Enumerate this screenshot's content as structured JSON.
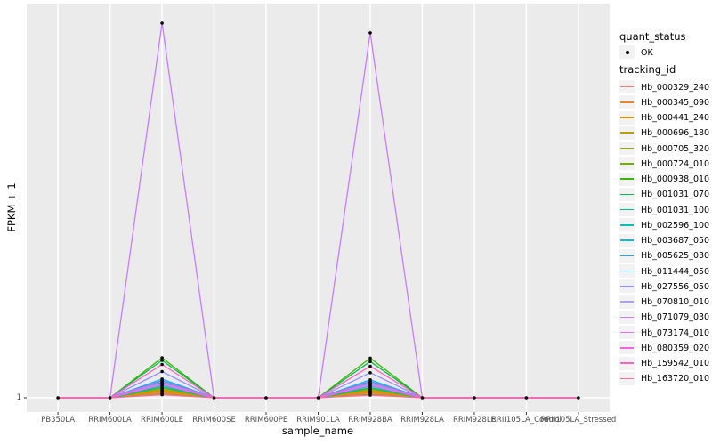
{
  "figure": {
    "background": "#FFFFFF",
    "panel_background": "#EBEBEB",
    "grid_color": "#FFFFFF",
    "tick_mark_color": "#333333",
    "tick_label_color": "#4D4D4D",
    "point_color": "#000000",
    "legend_key_background": "#F2F2F2"
  },
  "y_axis": {
    "title": "FPKM + 1",
    "tick_labels": [
      "1"
    ]
  },
  "x_axis": {
    "title": "sample_name",
    "categories": [
      "PB350LA",
      "RRIM600LA",
      "RRIM600LE",
      "RRIM600SE",
      "RRIM600PE",
      "RRIM901LA",
      "RRIM928BA",
      "RRIM928LA",
      "RRIM928LE",
      "RRII105LA_Control",
      "RRII105LA_Stressed"
    ]
  },
  "legend": {
    "quant_status": {
      "title": "quant_status",
      "items": [
        {
          "label": "OK",
          "symbol": "point"
        }
      ]
    },
    "tracking_id": {
      "title": "tracking_id"
    }
  },
  "chart_data": {
    "type": "line",
    "title": "",
    "xlabel": "sample_name",
    "ylabel": "FPKM + 1",
    "x_categories": [
      "PB350LA",
      "RRIM600LA",
      "RRIM600LE",
      "RRIM600SE",
      "RRIM600PE",
      "RRIM901LA",
      "RRIM928BA",
      "RRIM928LA",
      "RRIM928LE",
      "RRII105LA_Control",
      "RRII105LA_Stressed"
    ],
    "y_axis_labeled_ticks": [
      1
    ],
    "baseline_value": 1,
    "value_encoding": "rel_heights = fraction of panel height above the FPKM+1=1 baseline (only '1' is labeled on the y-axis); 1.0 = tallest spike",
    "quant_status_points": {
      "label": "OK",
      "marker": "small black point",
      "at": "every sample for every tracking_id"
    },
    "legend_position": "right",
    "grid": "white major gridlines on gray panel",
    "series": [
      {
        "name": "Hb_000329_240",
        "color": "#F8766D",
        "rel_heights": [
          0,
          0,
          0.013,
          0,
          0,
          0,
          0.012,
          0,
          0,
          0,
          0
        ]
      },
      {
        "name": "Hb_000345_090",
        "color": "#E9842C",
        "rel_heights": [
          0,
          0,
          0.016,
          0,
          0,
          0,
          0.015,
          0,
          0,
          0,
          0
        ]
      },
      {
        "name": "Hb_000441_240",
        "color": "#D69100",
        "rel_heights": [
          0,
          0,
          0.019,
          0,
          0,
          0,
          0.018,
          0,
          0,
          0,
          0
        ]
      },
      {
        "name": "Hb_000696_180",
        "color": "#BC9D00",
        "rel_heights": [
          0,
          0,
          0.022,
          0,
          0,
          0,
          0.021,
          0,
          0,
          0,
          0
        ]
      },
      {
        "name": "Hb_000705_320",
        "color": "#9CA700",
        "rel_heights": [
          0,
          0,
          0.01,
          0,
          0,
          0,
          0.009,
          0,
          0,
          0,
          0
        ]
      },
      {
        "name": "Hb_000724_010",
        "color": "#6FB000",
        "rel_heights": [
          0,
          0,
          0.026,
          0,
          0,
          0,
          0.024,
          0,
          0,
          0,
          0
        ]
      },
      {
        "name": "Hb_000938_010",
        "color": "#39B600",
        "rel_heights": [
          0,
          0,
          0.107,
          0,
          0,
          0,
          0.106,
          0,
          0,
          0,
          0
        ]
      },
      {
        "name": "Hb_001031_070",
        "color": "#00BB4E",
        "rel_heights": [
          0,
          0,
          0.1,
          0,
          0,
          0,
          0.097,
          0,
          0,
          0,
          0
        ]
      },
      {
        "name": "Hb_001031_100",
        "color": "#00C087",
        "rel_heights": [
          0,
          0,
          0.029,
          0,
          0,
          0,
          0.027,
          0,
          0,
          0,
          0
        ]
      },
      {
        "name": "Hb_002596_100",
        "color": "#00C0B4",
        "rel_heights": [
          0,
          0,
          0.033,
          0,
          0,
          0,
          0.031,
          0,
          0,
          0,
          0
        ]
      },
      {
        "name": "Hb_003687_050",
        "color": "#00BDD8",
        "rel_heights": [
          0,
          0,
          0.046,
          0,
          0,
          0,
          0.044,
          0,
          0,
          0,
          0
        ]
      },
      {
        "name": "Hb_005625_030",
        "color": "#00B4EF",
        "rel_heights": [
          0,
          0,
          0.041,
          0,
          0,
          0,
          0.039,
          0,
          0,
          0,
          0
        ]
      },
      {
        "name": "Hb_011444_050",
        "color": "#35A2FF",
        "rel_heights": [
          0,
          0,
          0.05,
          0,
          0,
          0,
          0.048,
          0,
          0,
          0,
          0
        ]
      },
      {
        "name": "Hb_027556_050",
        "color": "#9590FF",
        "rel_heights": [
          0,
          0,
          0.07,
          0,
          0,
          0,
          0.067,
          0,
          0,
          0,
          0
        ]
      },
      {
        "name": "Hb_070810_010",
        "color": "#B49BF2",
        "rel_heights": [
          0,
          0,
          0.038,
          0,
          0,
          0,
          0.036,
          0,
          0,
          0,
          0
        ]
      },
      {
        "name": "Hb_071079_030",
        "color": "#C77CFF",
        "rel_heights": [
          0,
          0,
          1.0,
          0,
          0,
          0,
          0.974,
          0,
          0,
          0,
          0
        ]
      },
      {
        "name": "Hb_073174_010",
        "color": "#E26EF7",
        "rel_heights": [
          0,
          0,
          0.035,
          0,
          0,
          0,
          0.033,
          0,
          0,
          0,
          0
        ]
      },
      {
        "name": "Hb_080359_020",
        "color": "#F763DF",
        "rel_heights": [
          0,
          0,
          0.043,
          0,
          0,
          0,
          0.041,
          0,
          0,
          0,
          0
        ]
      },
      {
        "name": "Hb_159542_010",
        "color": "#FF62BC",
        "rel_heights": [
          0,
          0,
          0.089,
          0,
          0,
          0,
          0.084,
          0,
          0,
          0,
          0
        ]
      },
      {
        "name": "Hb_163720_010",
        "color": "#FF6A9A",
        "rel_heights": [
          0,
          0,
          0.008,
          0,
          0,
          0,
          0.007,
          0,
          0,
          0,
          0
        ]
      }
    ]
  }
}
